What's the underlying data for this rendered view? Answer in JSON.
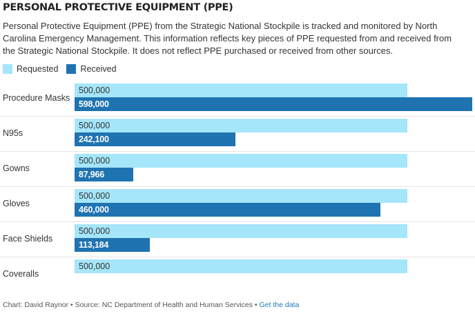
{
  "header": {
    "title": "PERSONAL PROTECTIVE EQUIPMENT (PPE)",
    "subtitle": "Personal Protective Equipment (PPE) from the Strategic National Stockpile is tracked and monitored by North Carolina Emergency Management. This information reflects key pieces of PPE requested from and received from the Strategic National Stockpile. It does not reflect PPE purchased or received from other sources."
  },
  "colors": {
    "requested": "#a5e6fa",
    "received": "#1f73b1"
  },
  "chart_data": {
    "type": "bar",
    "orientation": "horizontal",
    "categories": [
      "Procedure Masks",
      "N95s",
      "Gowns",
      "Gloves",
      "Face Shields",
      "Coveralls"
    ],
    "series": [
      {
        "name": "Requested",
        "values": [
          500000,
          500000,
          500000,
          500000,
          500000,
          500000
        ],
        "labels": [
          "500,000",
          "500,000",
          "500,000",
          "500,000",
          "500,000",
          "500,000"
        ]
      },
      {
        "name": "Received",
        "values": [
          598000,
          242100,
          87966,
          460000,
          113184,
          null
        ],
        "labels": [
          "598,000",
          "242,100",
          "87,966",
          "460,000",
          "113,184",
          ""
        ]
      }
    ],
    "legend_position": "top-left",
    "grid": false,
    "xlim": [
      0,
      598000
    ]
  },
  "footer": {
    "credit": "Chart: David Raynor • Source: NC Department of Health and Human Services •",
    "link": "Get the data"
  }
}
